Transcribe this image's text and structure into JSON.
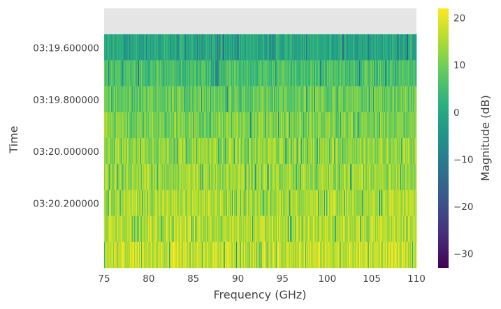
{
  "chart_data": {
    "type": "heatmap",
    "title": "",
    "xlabel": "Frequency (GHz)",
    "ylabel": "Time",
    "xlim": [
      75,
      110
    ],
    "x_ticks": [
      75,
      80,
      85,
      90,
      95,
      100,
      105,
      110
    ],
    "x_tick_labels": [
      "75",
      "80",
      "85",
      "90",
      "95",
      "100",
      "105",
      "110"
    ],
    "y_tick_labels": [
      "03:19.600000",
      "03:19.800000",
      "03:20.000000",
      "03:20.200000"
    ],
    "time_rows": 9,
    "row_mean_db": [
      null,
      0,
      6,
      9,
      11,
      13,
      14,
      15,
      16,
      17
    ],
    "row_note_first": "top row is empty (no data)",
    "colorbar": {
      "label": "Magnitude (dB)",
      "range": [
        -33,
        22
      ],
      "ticks": [
        20,
        10,
        0,
        -10,
        -20,
        -30
      ],
      "tick_labels": [
        "20",
        "10",
        "0",
        "−10",
        "−20",
        "−30"
      ],
      "colormap": "viridis"
    },
    "grid": false,
    "colors": {
      "missing": "#e5e5e5",
      "text": "#444444"
    }
  }
}
